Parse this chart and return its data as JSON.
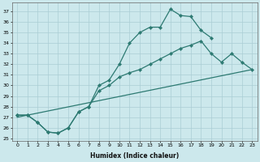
{
  "xlabel": "Humidex (Indice chaleur)",
  "bg_color": "#cce8ec",
  "grid_color": "#aacdd4",
  "line_color": "#2d7a72",
  "xlim": [
    -0.5,
    23.5
  ],
  "ylim": [
    24.8,
    37.8
  ],
  "yticks": [
    25,
    26,
    27,
    28,
    29,
    30,
    31,
    32,
    33,
    34,
    35,
    36,
    37
  ],
  "xticks": [
    0,
    1,
    2,
    3,
    4,
    5,
    6,
    7,
    8,
    9,
    10,
    11,
    12,
    13,
    14,
    15,
    16,
    17,
    18,
    19,
    20,
    21,
    22,
    23
  ],
  "line1_x": [
    0,
    1,
    2,
    3,
    4,
    5,
    6,
    7,
    8,
    9,
    10,
    11,
    12,
    13,
    14,
    15,
    16,
    17,
    18,
    19
  ],
  "line1_y": [
    27.2,
    27.2,
    26.5,
    25.6,
    25.5,
    26.0,
    27.5,
    28.0,
    30.0,
    30.5,
    32.0,
    34.0,
    35.0,
    35.5,
    35.5,
    37.2,
    36.6,
    36.5,
    35.2,
    34.5
  ],
  "line2_x": [
    0,
    1,
    2,
    3,
    4,
    5,
    6,
    7,
    8,
    9,
    10,
    11,
    12,
    13,
    14,
    15,
    16,
    17,
    18,
    19,
    20,
    21,
    22,
    23
  ],
  "line2_y": [
    27.2,
    27.2,
    26.5,
    25.6,
    25.5,
    26.0,
    27.5,
    28.0,
    29.5,
    30.0,
    30.8,
    31.2,
    31.5,
    32.0,
    32.5,
    33.0,
    33.5,
    33.8,
    34.2,
    33.0,
    32.2,
    33.0,
    32.2,
    31.5
  ],
  "line3_x": [
    0,
    23
  ],
  "line3_y": [
    27.0,
    31.5
  ]
}
